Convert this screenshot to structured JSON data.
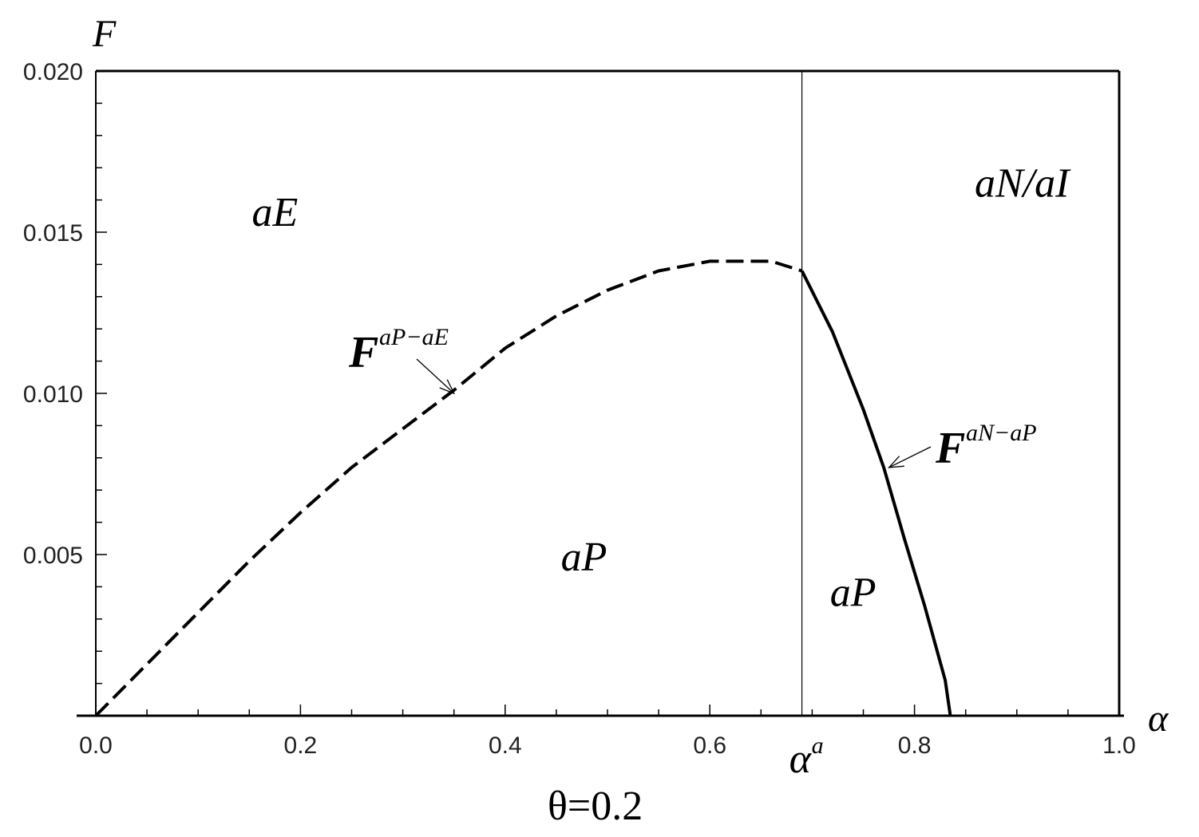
{
  "chart_data": {
    "type": "line",
    "xlabel": "α",
    "ylabel": "F",
    "xlim": [
      0.0,
      1.0
    ],
    "ylim": [
      0.0,
      0.02
    ],
    "x_ticks": [
      "0.0",
      "0.2",
      "0.4",
      "0.6",
      "0.8",
      "1.0"
    ],
    "y_ticks": [
      "0.005",
      "0.010",
      "0.015",
      "0.020"
    ],
    "threshold": {
      "x": 0.69,
      "label": "α",
      "label_sup": "a"
    },
    "series": [
      {
        "style": "dashed",
        "x": [
          0.0,
          0.05,
          0.1,
          0.15,
          0.2,
          0.25,
          0.3,
          0.35,
          0.4,
          0.45,
          0.5,
          0.55,
          0.6,
          0.63,
          0.66,
          0.69
        ],
        "y": [
          0.0,
          0.0016,
          0.0032,
          0.0048,
          0.0063,
          0.0077,
          0.0089,
          0.0101,
          0.0114,
          0.0124,
          0.0132,
          0.0138,
          0.0141,
          0.0141,
          0.0141,
          0.0138
        ]
      },
      {
        "style": "solid",
        "x": [
          0.69,
          0.72,
          0.75,
          0.77,
          0.79,
          0.81,
          0.83,
          0.835
        ],
        "y": [
          0.0138,
          0.0119,
          0.0095,
          0.0077,
          0.0055,
          0.0034,
          0.0011,
          0.0
        ]
      }
    ],
    "annotations": [
      {
        "text": "F",
        "sup": "aP−aE",
        "x": 0.35,
        "y": 0.01
      },
      {
        "text": "F",
        "sup": "aN−aP",
        "x": 0.775,
        "y": 0.0077
      }
    ],
    "regions": [
      {
        "text": "aE",
        "x": 0.175,
        "y": 0.0152
      },
      {
        "text": "aN/aI",
        "x": 0.905,
        "y": 0.0161
      },
      {
        "text": "aP",
        "x": 0.477,
        "y": 0.0045
      },
      {
        "text": "aP",
        "x": 0.74,
        "y": 0.0034
      }
    ],
    "parameter": "θ=0.2"
  }
}
